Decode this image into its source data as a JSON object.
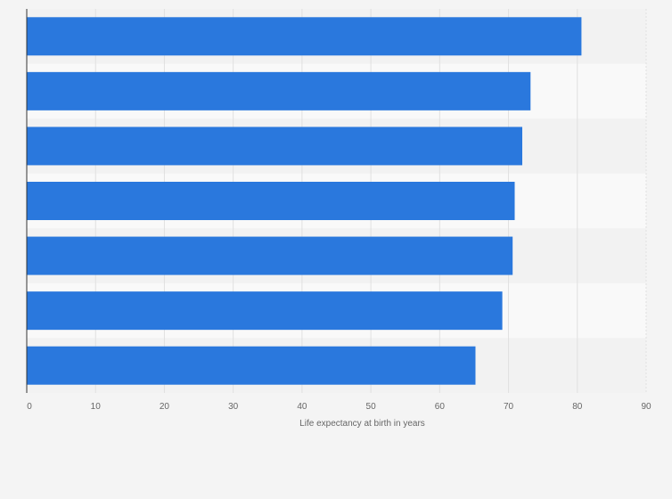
{
  "chart_data": {
    "type": "bar",
    "orientation": "horizontal",
    "title": "",
    "xlabel": "Life expectancy at birth in years",
    "ylabel": "",
    "categories": [
      "",
      "",
      "",
      "",
      "",
      "",
      ""
    ],
    "values": [
      80.6,
      73.2,
      72.0,
      70.9,
      70.6,
      69.1,
      65.2
    ],
    "xlim": [
      0,
      90
    ],
    "xticks": [
      0,
      10,
      20,
      30,
      40,
      50,
      60,
      70,
      80,
      90
    ],
    "grid": true,
    "legend": "none",
    "colors": {
      "bar": "#2a78dd",
      "page_background": "#f4f4f4",
      "band_light": "#f9f9f9",
      "band_dark": "#f2f2f2",
      "grid": "#e0e0e0",
      "axis": "#333333",
      "text": "#666666"
    }
  }
}
